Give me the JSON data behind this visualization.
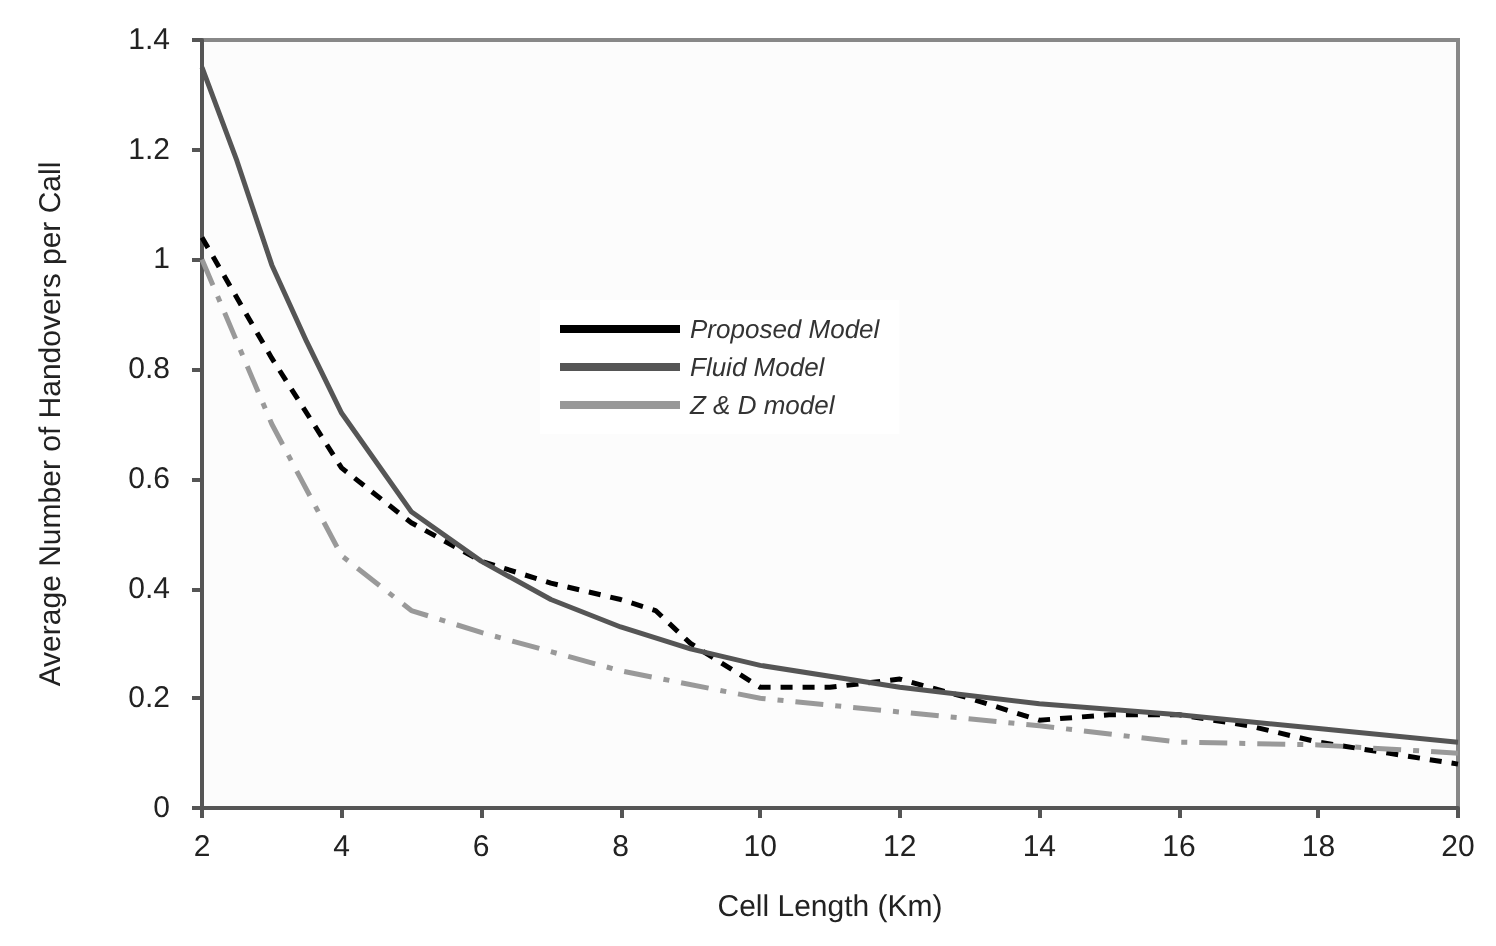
{
  "chart_data": {
    "type": "line",
    "xlabel": "Cell Length (Km)",
    "ylabel": "Average Number of Handovers per Call",
    "xlim": [
      2,
      20
    ],
    "xticks": [
      2,
      4,
      6,
      8,
      10,
      12,
      14,
      16,
      18,
      20
    ],
    "ylim": [
      0,
      1.4
    ],
    "yticks": [
      0,
      0.2,
      0.4,
      0.6,
      0.8,
      1,
      1.2,
      1.4
    ],
    "grid": false,
    "legend": "top",
    "marker": "none",
    "series": [
      {
        "name": "Proposed Model",
        "color": "#000000",
        "line_style": "dashed",
        "x": [
          2,
          3,
          4,
          5,
          6,
          7,
          8,
          8.5,
          9,
          10,
          11,
          12,
          13,
          14,
          15,
          16,
          17,
          18,
          19,
          20
        ],
        "values": [
          1.04,
          0.82,
          0.62,
          0.52,
          0.45,
          0.41,
          0.38,
          0.36,
          0.3,
          0.22,
          0.22,
          0.235,
          0.2,
          0.16,
          0.17,
          0.17,
          0.15,
          0.12,
          0.1,
          0.08
        ]
      },
      {
        "name": "Fluid Model",
        "color": "#555555",
        "line_style": "solid",
        "x": [
          2,
          2.5,
          3,
          3.5,
          4,
          5,
          6,
          7,
          8,
          9,
          10,
          12,
          14,
          16,
          18,
          20
        ],
        "values": [
          1.35,
          1.18,
          0.99,
          0.85,
          0.72,
          0.54,
          0.45,
          0.38,
          0.33,
          0.29,
          0.26,
          0.22,
          0.19,
          0.17,
          0.145,
          0.12
        ]
      },
      {
        "name": "Z & D model",
        "color": "#999999",
        "line_style": "dashdot",
        "x": [
          2,
          3,
          4,
          5,
          6,
          8,
          10,
          12,
          14,
          16,
          18,
          20
        ],
        "values": [
          1.0,
          0.7,
          0.46,
          0.36,
          0.32,
          0.25,
          0.2,
          0.175,
          0.15,
          0.12,
          0.115,
          0.1
        ]
      }
    ]
  }
}
